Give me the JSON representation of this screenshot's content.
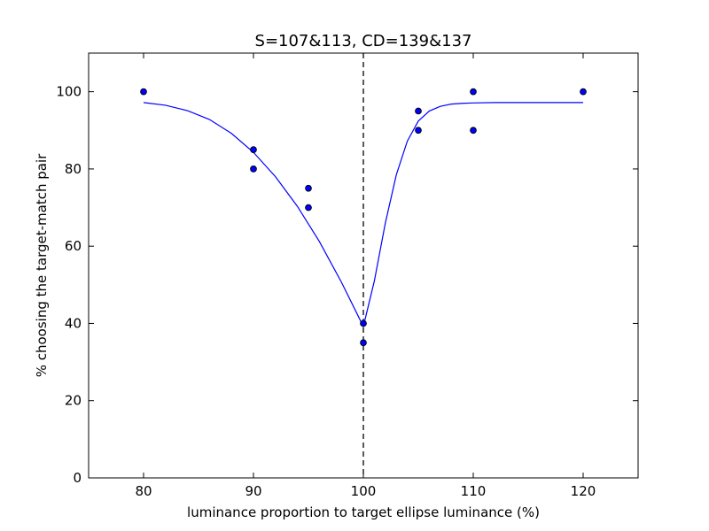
{
  "chart_data": {
    "type": "scatter",
    "title": "S=107&113, CD=139&137",
    "xlabel": "luminance proportion to target ellipse luminance (%)",
    "ylabel": "% choosing the target-match pair",
    "xlim": [
      75,
      125
    ],
    "ylim": [
      0,
      110
    ],
    "xticks": [
      80,
      90,
      100,
      110,
      120
    ],
    "yticks": [
      0,
      20,
      40,
      60,
      80,
      100
    ],
    "grid": false,
    "points": [
      {
        "x": 80,
        "y": 100
      },
      {
        "x": 90,
        "y": 85
      },
      {
        "x": 90,
        "y": 80
      },
      {
        "x": 95,
        "y": 75
      },
      {
        "x": 95,
        "y": 70
      },
      {
        "x": 100,
        "y": 40
      },
      {
        "x": 100,
        "y": 35
      },
      {
        "x": 105,
        "y": 95
      },
      {
        "x": 105,
        "y": 90
      },
      {
        "x": 110,
        "y": 100
      },
      {
        "x": 110,
        "y": 90
      },
      {
        "x": 120,
        "y": 100
      }
    ],
    "fit_curve": {
      "x": [
        80,
        82,
        84,
        86,
        88,
        90,
        92,
        94,
        96,
        98,
        100,
        101,
        102,
        103,
        104,
        105,
        106,
        107,
        108,
        109,
        110,
        112,
        115,
        120
      ],
      "y": [
        97.2,
        96.5,
        95.1,
        92.8,
        89.2,
        84.3,
        78.0,
        70.3,
        61.2,
        50.7,
        39.2,
        51.0,
        66.0,
        78.5,
        87.2,
        92.4,
        95.0,
        96.2,
        96.8,
        97.0,
        97.1,
        97.2,
        97.2,
        97.2
      ]
    },
    "reference_line": {
      "x": 100,
      "style": "dashed"
    },
    "colors": {
      "points_fill": "#0000ff",
      "points_edge": "#000000",
      "curve": "#0000ff",
      "reference": "#000000"
    }
  }
}
